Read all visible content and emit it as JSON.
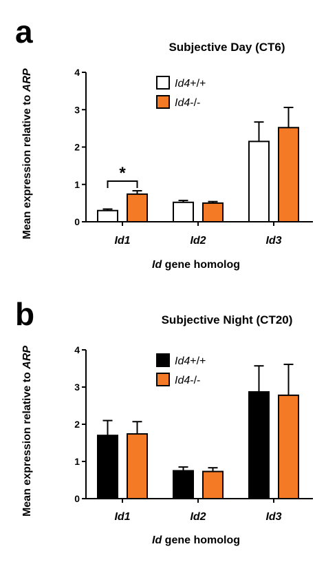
{
  "chart_data": [
    {
      "panel": "a",
      "type": "bar",
      "title": "Subjective Day (CT6)",
      "ylabel_parts": [
        "Mean expression relative to ",
        "ARP"
      ],
      "xlabel_parts": [
        "Id",
        " gene homolog"
      ],
      "categories": [
        "Id1",
        "Id2",
        "Id3"
      ],
      "ylim": [
        0,
        4
      ],
      "yticks": [
        "0",
        "1",
        "2",
        "3",
        "4"
      ],
      "legend_position": "top-center",
      "series": [
        {
          "name_italic": "Id4",
          "name_rest": "+/+",
          "color": "#ffffff",
          "values": [
            0.3,
            0.52,
            2.15
          ],
          "errors": [
            0.04,
            0.05,
            0.52
          ]
        },
        {
          "name_italic": "Id4",
          "name_rest": "-/-",
          "color": "#f47a26",
          "values": [
            0.74,
            0.5,
            2.52
          ],
          "errors": [
            0.09,
            0.04,
            0.54
          ]
        }
      ],
      "significance": {
        "label": "*",
        "category": "Id1"
      }
    },
    {
      "panel": "b",
      "type": "bar",
      "title": "Subjective Night (CT20)",
      "ylabel_parts": [
        "Mean expression relative to ",
        "ARP"
      ],
      "xlabel_parts": [
        "Id",
        " gene homolog"
      ],
      "categories": [
        "Id1",
        "Id2",
        "Id3"
      ],
      "ylim": [
        0,
        4
      ],
      "yticks": [
        "0",
        "1",
        "2",
        "3",
        "4"
      ],
      "legend_position": "top-center",
      "series": [
        {
          "name_italic": "Id4",
          "name_rest": "+/+",
          "color": "#000000",
          "values": [
            1.7,
            0.75,
            2.87
          ],
          "errors": [
            0.4,
            0.1,
            0.7
          ]
        },
        {
          "name_italic": "Id4",
          "name_rest": "-/-",
          "color": "#f47a26",
          "values": [
            1.74,
            0.73,
            2.78
          ],
          "errors": [
            0.33,
            0.1,
            0.83
          ]
        }
      ]
    }
  ]
}
